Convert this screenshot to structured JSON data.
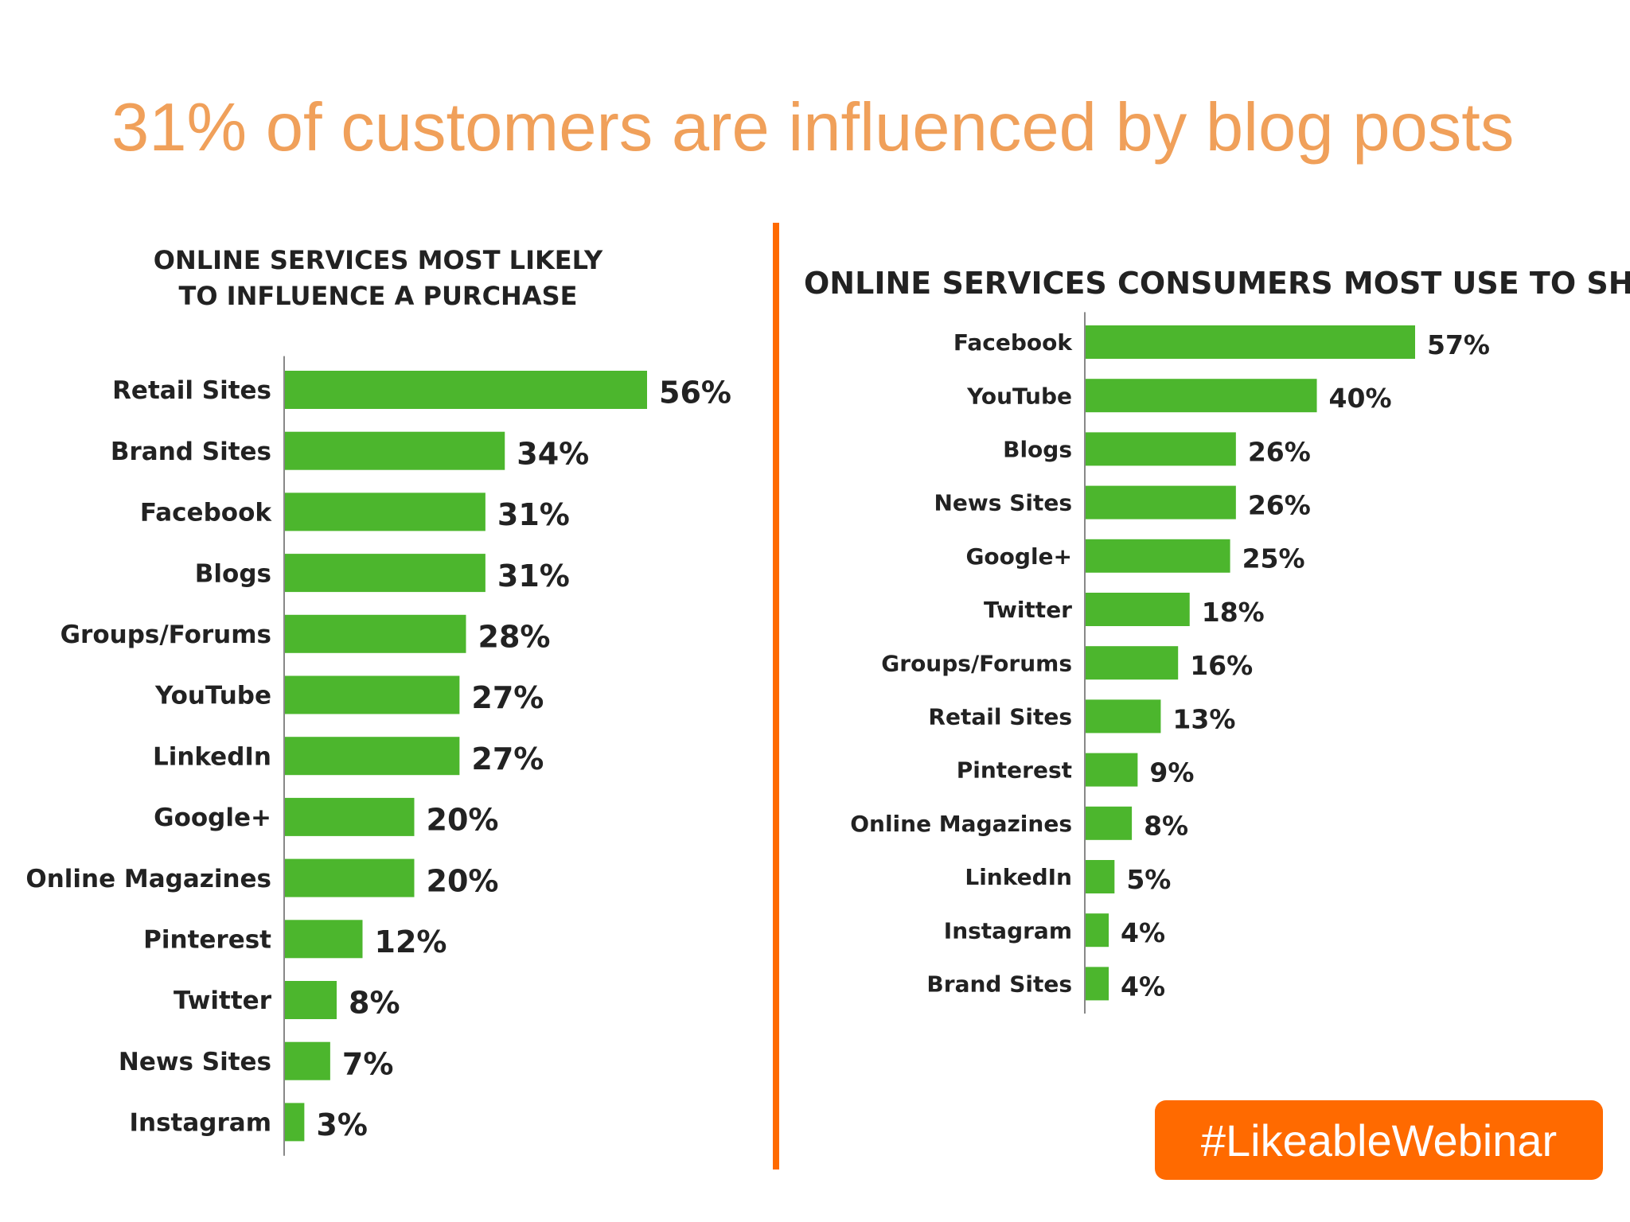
{
  "title": "31% of customers are influenced by blog posts",
  "hashtag": "#LikeableWebinar",
  "colors": {
    "title": "#f0a05a",
    "bar": "#4cb62d",
    "divider": "#ff6a00",
    "badge": "#ff6a00",
    "text": "#222222"
  },
  "chart_data": [
    {
      "type": "bar",
      "orientation": "horizontal",
      "title_lines": [
        "ONLINE SERVICES MOST LIKELY",
        "TO INFLUENCE A PURCHASE"
      ],
      "categories": [
        "Retail Sites",
        "Brand Sites",
        "Facebook",
        "Blogs",
        "Groups/Forums",
        "YouTube",
        "LinkedIn",
        "Google+",
        "Online Magazines",
        "Pinterest",
        "Twitter",
        "News Sites",
        "Instagram"
      ],
      "values": [
        56,
        34,
        31,
        31,
        28,
        27,
        27,
        20,
        20,
        12,
        8,
        7,
        3
      ],
      "value_labels": [
        "56%",
        "34%",
        "31%",
        "31%",
        "28%",
        "27%",
        "27%",
        "20%",
        "20%",
        "12%",
        "8%",
        "7%",
        "3%"
      ],
      "unit": "%"
    },
    {
      "type": "bar",
      "orientation": "horizontal",
      "title": "ONLINE SERVICES CONSUMERS MOST USE TO SHARE",
      "categories": [
        "Facebook",
        "YouTube",
        "Blogs",
        "News Sites",
        "Google+",
        "Twitter",
        "Groups/Forums",
        "Retail Sites",
        "Pinterest",
        "Online Magazines",
        "LinkedIn",
        "Instagram",
        "Brand Sites"
      ],
      "values": [
        57,
        40,
        26,
        26,
        25,
        18,
        16,
        13,
        9,
        8,
        5,
        4,
        4
      ],
      "value_labels": [
        "57%",
        "40%",
        "26%",
        "26%",
        "25%",
        "18%",
        "16%",
        "13%",
        "9%",
        "8%",
        "5%",
        "4%",
        "4%"
      ],
      "unit": "%"
    }
  ]
}
